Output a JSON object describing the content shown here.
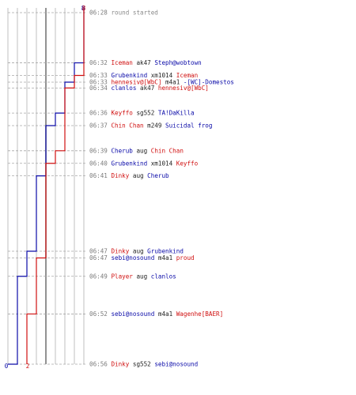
{
  "chart_data": {
    "type": "line",
    "title": "",
    "xlabel": "",
    "ylabel": "",
    "colors": {
      "blue_team": "#0a0aa8",
      "red_team": "#d01010",
      "grid": "#b0b0b0",
      "time": "#7a7a7a",
      "text": "#222222"
    },
    "x_range": [
      0,
      8
    ],
    "start": {
      "blue": 8,
      "red": 8,
      "blue_label": "8",
      "red_label": "8"
    },
    "end": {
      "blue": 0,
      "red": 2,
      "blue_label": "0",
      "red_label": "2"
    },
    "series": [
      {
        "name": "blue",
        "color": "#0a0aa8"
      },
      {
        "name": "red",
        "color": "#d01010"
      }
    ],
    "events": [
      {
        "time": "06:28",
        "killer": "",
        "weapon": "round started",
        "victim": "",
        "killer_team": "none",
        "victim_team": "none",
        "blue_after": 8,
        "red_after": 8
      },
      {
        "time": "06:32",
        "killer": "Iceman",
        "weapon": "ak47",
        "victim": "Steph@wobtown",
        "killer_team": "red",
        "victim_team": "blue",
        "blue_after": 7,
        "red_after": 8
      },
      {
        "time": "06:33",
        "killer": "Grubenkind",
        "weapon": "xm1014",
        "victim": "Iceman",
        "killer_team": "blue",
        "victim_team": "red",
        "blue_after": 7,
        "red_after": 7
      },
      {
        "time": "06:33",
        "killer": "hennesiv@[WbC]",
        "weapon": "m4a1",
        "victim": "-[WC]-Domestos",
        "killer_team": "red",
        "victim_team": "blue",
        "blue_after": 6,
        "red_after": 7
      },
      {
        "time": "06:34",
        "killer": "clanlos",
        "weapon": "ak47",
        "victim": "hennesiv@[WbC]",
        "killer_team": "blue",
        "victim_team": "red",
        "blue_after": 6,
        "red_after": 6
      },
      {
        "time": "06:36",
        "killer": "Keyffo",
        "weapon": "sg552",
        "victim": "TA!DaKilla",
        "killer_team": "red",
        "victim_team": "blue",
        "blue_after": 5,
        "red_after": 6
      },
      {
        "time": "06:37",
        "killer": "Chin Chan",
        "weapon": "m249",
        "victim": "Suicidal frog",
        "killer_team": "red",
        "victim_team": "blue",
        "blue_after": 4,
        "red_after": 6
      },
      {
        "time": "06:39",
        "killer": "Cherub",
        "weapon": "aug",
        "victim": "Chin Chan",
        "killer_team": "blue",
        "victim_team": "red",
        "blue_after": 4,
        "red_after": 5
      },
      {
        "time": "06:40",
        "killer": "Grubenkind",
        "weapon": "xm1014",
        "victim": "Keyffo",
        "killer_team": "blue",
        "victim_team": "red",
        "blue_after": 4,
        "red_after": 4
      },
      {
        "time": "06:41",
        "killer": "Dinky",
        "weapon": "aug",
        "victim": "Cherub",
        "killer_team": "red",
        "victim_team": "blue",
        "blue_after": 3,
        "red_after": 4
      },
      {
        "time": "06:47",
        "killer": "Dinky",
        "weapon": "aug",
        "victim": "Grubenkind",
        "killer_team": "red",
        "victim_team": "blue",
        "blue_after": 2,
        "red_after": 4
      },
      {
        "time": "06:47",
        "killer": "sebi@nosound",
        "weapon": "m4a1",
        "victim": "proud",
        "killer_team": "blue",
        "victim_team": "red",
        "blue_after": 2,
        "red_after": 3
      },
      {
        "time": "06:49",
        "killer": "Player",
        "weapon": "aug",
        "victim": "clanlos",
        "killer_team": "red",
        "victim_team": "blue",
        "blue_after": 1,
        "red_after": 3
      },
      {
        "time": "06:52",
        "killer": "sebi@nosound",
        "weapon": "m4a1",
        "victim": "Wagenhe[BAER]",
        "killer_team": "blue",
        "victim_team": "red",
        "blue_after": 1,
        "red_after": 2
      },
      {
        "time": "06:56",
        "killer": "Dinky",
        "weapon": "sg552",
        "victim": "sebi@nosound",
        "killer_team": "red",
        "victim_team": "blue",
        "blue_after": 0,
        "red_after": 2
      }
    ]
  }
}
